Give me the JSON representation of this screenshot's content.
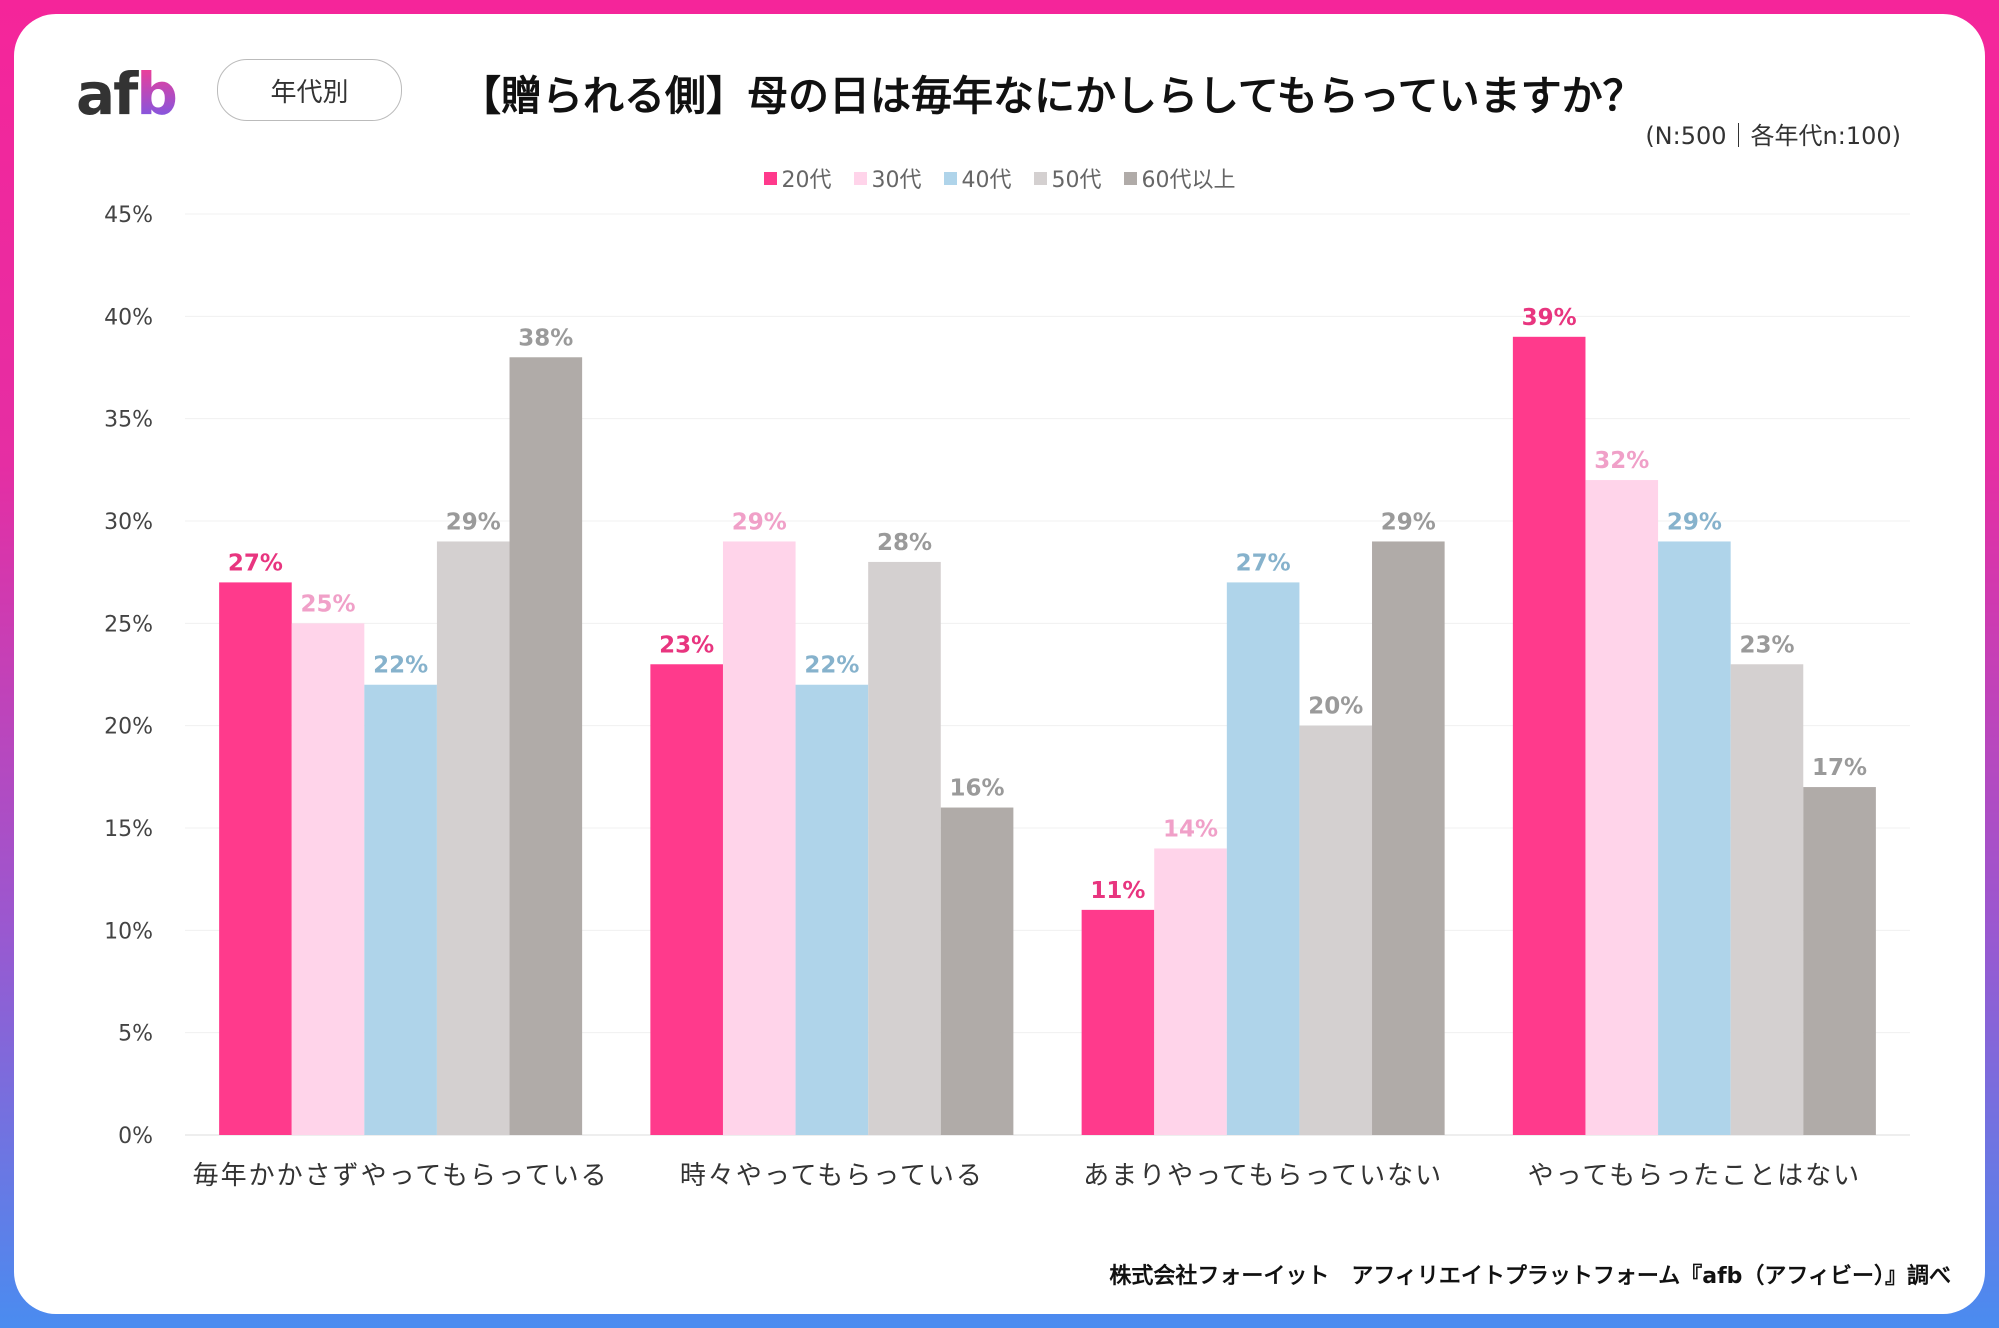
{
  "header": {
    "logo": "afb",
    "filter_label": "年代別",
    "title": "【贈られる側】母の日は毎年なにかしらしてもらっていますか？",
    "sample_note": "(N:500｜各年代n:100)"
  },
  "footer": {
    "source": "株式会社フォーイット　アフィリエイトプラットフォーム『afb（アフィビー）』調べ"
  },
  "chart_data": {
    "type": "bar",
    "title": "【贈られる側】母の日は毎年なにかしらしてもらっていますか？",
    "categories": [
      "毎年かかさずやってもらっている",
      "時々やってもらっている",
      "あまりやってもらっていない",
      "やってもらったことはない"
    ],
    "series": [
      {
        "name": "20代",
        "color": "#ff3a8c",
        "label_color": "#e8357f",
        "values": [
          27,
          23,
          11,
          39
        ]
      },
      {
        "name": "30代",
        "color": "#ffd4ea",
        "label_color": "#f0a0c8",
        "values": [
          25,
          29,
          14,
          32
        ]
      },
      {
        "name": "40代",
        "color": "#afd4ea",
        "label_color": "#86b2cc",
        "values": [
          22,
          22,
          27,
          29
        ]
      },
      {
        "name": "50代",
        "color": "#d4d0d0",
        "label_color": "#9a9a9a",
        "values": [
          29,
          28,
          20,
          23
        ]
      },
      {
        "name": "60代以上",
        "color": "#b0aba8",
        "label_color": "#9a9a9a",
        "values": [
          38,
          16,
          29,
          17
        ]
      }
    ],
    "ylim": [
      0,
      45
    ],
    "yticks": [
      "0%",
      "5%",
      "10%",
      "15%",
      "20%",
      "25%",
      "30%",
      "35%",
      "40%",
      "45%"
    ],
    "grid": true,
    "legend": "top-center",
    "unit": "%"
  }
}
